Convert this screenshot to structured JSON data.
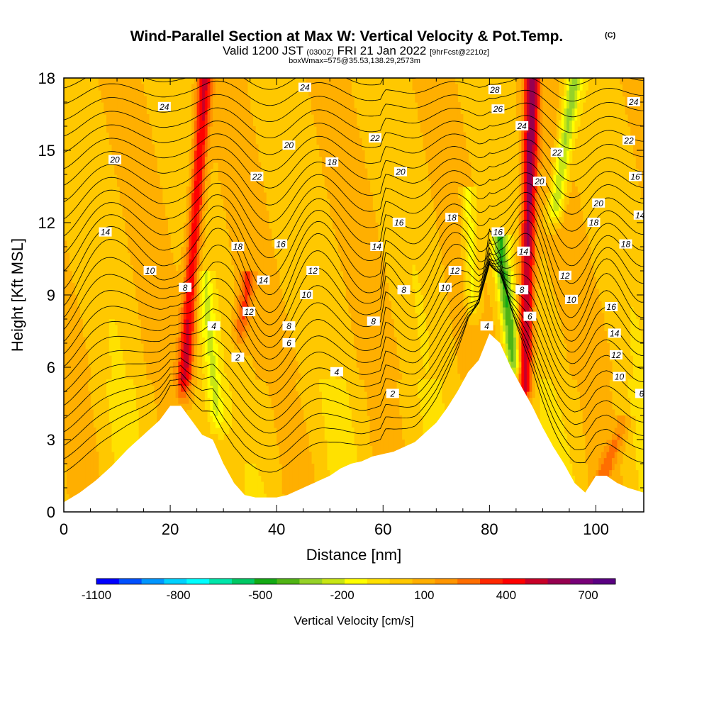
{
  "chart_data": {
    "type": "heatmap",
    "title": "Wind-Parallel Section at Max W: Vertical Velocity & Pot.Temp.",
    "title_mark": "(C)",
    "subtitle_main": "Valid 1200 JST",
    "subtitle_utc": "(0300Z)",
    "subtitle_date": "FRI 21 Jan 2022",
    "subtitle_fcst": "[9hrFcst@2210z]",
    "subtitle_box": "boxWmax=575@35.53,138.29,2573m",
    "xlabel": "Distance [nm]",
    "ylabel": "Height [Kft MSL]",
    "xlim": [
      0,
      109
    ],
    "ylim": [
      0,
      18
    ],
    "x_ticks": [
      0,
      20,
      40,
      60,
      80,
      100
    ],
    "y_ticks": [
      0,
      3,
      6,
      9,
      12,
      15,
      18
    ],
    "colorbar": {
      "title": "Vertical Velocity [cm/s]",
      "tick_labels": [
        "-1100",
        "-800",
        "-500",
        "-200",
        "100",
        "400",
        "700"
      ],
      "tick_values": [
        -1100,
        -800,
        -500,
        -200,
        100,
        400,
        700
      ],
      "range": [
        -1100,
        800
      ],
      "colors": [
        "#0000ff",
        "#0050ff",
        "#0096ff",
        "#00d2ff",
        "#00ffff",
        "#00e6aa",
        "#00c864",
        "#14aa14",
        "#50b414",
        "#96d228",
        "#c8e614",
        "#ffff00",
        "#ffe100",
        "#ffc800",
        "#ffaf00",
        "#ff9600",
        "#ff6e00",
        "#ff2800",
        "#ff0000",
        "#c80028",
        "#960050",
        "#780078",
        "#5a0082"
      ]
    },
    "terrain": {
      "description": "terrain profile (height in Kft vs distance in nm)",
      "x": [
        0,
        3,
        6,
        9,
        12,
        15,
        18,
        20,
        22,
        24,
        26,
        28,
        30,
        32,
        34,
        36,
        38,
        40,
        42,
        44,
        46,
        48,
        50,
        52,
        54,
        56,
        58,
        60,
        62,
        64,
        66,
        68,
        70,
        72,
        74,
        76,
        78,
        80,
        82,
        84,
        86,
        88,
        90,
        92,
        94,
        96,
        98,
        100,
        102,
        104,
        106,
        109
      ],
      "y": [
        0.4,
        0.8,
        1.3,
        1.9,
        2.6,
        3.2,
        3.8,
        4.4,
        4.4,
        3.8,
        3.2,
        3.0,
        2.0,
        1.2,
        0.7,
        0.6,
        0.6,
        0.6,
        0.7,
        0.9,
        1.1,
        1.3,
        1.5,
        1.8,
        2.0,
        2.1,
        2.3,
        2.4,
        2.5,
        2.7,
        2.9,
        3.3,
        3.7,
        4.3,
        5.0,
        5.8,
        6.3,
        7.4,
        7.0,
        6.0,
        5.2,
        4.4,
        3.5,
        2.7,
        2.0,
        1.2,
        0.8,
        1.5,
        1.5,
        1.2,
        1.0,
        0.8
      ]
    },
    "updrafts": [
      {
        "x_base": 22.5,
        "x_top": 26.5,
        "y_base": 4.8,
        "y_top": 18,
        "peak": 450
      },
      {
        "x_base": 33.0,
        "x_top": 34.5,
        "y_base": 7.0,
        "y_top": 9.5,
        "peak": 250
      },
      {
        "x_base": 86.5,
        "x_top": 88.0,
        "y_base": 4.5,
        "y_top": 18,
        "peak": 550
      },
      {
        "x_base": 100.0,
        "x_top": 105.0,
        "y_base": 0.8,
        "y_top": 3.5,
        "peak": 180
      }
    ],
    "downdrafts": [
      {
        "x_base": 29.0,
        "x_top": 26.5,
        "y_base": 3.5,
        "y_top": 9.5,
        "peak": -200
      },
      {
        "x_base": 85.0,
        "x_top": 82.0,
        "y_base": 5.5,
        "y_top": 11.0,
        "peak": -450
      },
      {
        "x_base": 92.0,
        "x_top": 96.0,
        "y_base": 12.0,
        "y_top": 18.0,
        "peak": -350
      },
      {
        "x_base": 77.0,
        "x_top": 76.0,
        "y_base": 8.0,
        "y_top": 13.0,
        "peak": -220
      }
    ],
    "contour_levels_C": [
      2,
      4,
      6,
      8,
      10,
      12,
      14,
      16,
      18,
      20,
      22,
      24,
      26,
      28
    ],
    "contour_labels": [
      {
        "text": "24",
        "x": 6.3,
        "y": 16.8
      },
      {
        "text": "20",
        "x": 3.2,
        "y": 14.6
      },
      {
        "text": "14",
        "x": 2.6,
        "y": 11.6
      },
      {
        "text": "10",
        "x": 5.4,
        "y": 10.0
      },
      {
        "text": "8",
        "x": 7.6,
        "y": 9.3
      },
      {
        "text": "4",
        "x": 9.4,
        "y": 7.7
      },
      {
        "text": "2",
        "x": 10.9,
        "y": 6.4
      },
      {
        "text": "18",
        "x": 10.9,
        "y": 11.0
      },
      {
        "text": "12",
        "x": 11.6,
        "y": 8.3
      },
      {
        "text": "22",
        "x": 12.1,
        "y": 13.9
      },
      {
        "text": "14",
        "x": 12.5,
        "y": 9.6
      },
      {
        "text": "16",
        "x": 13.6,
        "y": 11.1
      },
      {
        "text": "24",
        "x": 15.1,
        "y": 17.6
      },
      {
        "text": "20",
        "x": 14.1,
        "y": 15.2
      },
      {
        "text": "8",
        "x": 14.1,
        "y": 7.7
      },
      {
        "text": "6",
        "x": 14.1,
        "y": 7.0
      },
      {
        "text": "18",
        "x": 16.8,
        "y": 14.5
      },
      {
        "text": "12",
        "x": 15.6,
        "y": 10.0
      },
      {
        "text": "10",
        "x": 15.2,
        "y": 9.0
      },
      {
        "text": "4",
        "x": 17.1,
        "y": 5.8
      },
      {
        "text": "22",
        "x": 19.5,
        "y": 15.5
      },
      {
        "text": "20",
        "x": 21.1,
        "y": 14.1
      },
      {
        "text": "16",
        "x": 21.0,
        "y": 12.0
      },
      {
        "text": "14",
        "x": 19.6,
        "y": 11.0
      },
      {
        "text": "8",
        "x": 21.3,
        "y": 9.2
      },
      {
        "text": "8",
        "x": 19.4,
        "y": 7.9
      },
      {
        "text": "2",
        "x": 20.6,
        "y": 4.9
      },
      {
        "text": "18",
        "x": 24.3,
        "y": 12.2
      },
      {
        "text": "12",
        "x": 24.5,
        "y": 10.0
      },
      {
        "text": "10",
        "x": 23.9,
        "y": 9.3
      },
      {
        "text": "4",
        "x": 26.5,
        "y": 7.7
      },
      {
        "text": "28",
        "x": 27.0,
        "y": 17.5
      },
      {
        "text": "26",
        "x": 27.2,
        "y": 16.7
      },
      {
        "text": "24",
        "x": 28.7,
        "y": 16.0
      },
      {
        "text": "16",
        "x": 27.2,
        "y": 11.6
      },
      {
        "text": "22",
        "x": 30.9,
        "y": 14.9
      },
      {
        "text": "20",
        "x": 29.8,
        "y": 13.7
      },
      {
        "text": "14",
        "x": 28.8,
        "y": 10.8
      },
      {
        "text": "8",
        "x": 28.7,
        "y": 9.2
      },
      {
        "text": "6",
        "x": 29.2,
        "y": 8.1
      },
      {
        "text": "12",
        "x": 31.4,
        "y": 9.8
      },
      {
        "text": "10",
        "x": 31.8,
        "y": 8.8
      },
      {
        "text": "20",
        "x": 33.5,
        "y": 12.8
      },
      {
        "text": "18",
        "x": 33.2,
        "y": 12.0
      },
      {
        "text": "16",
        "x": 34.3,
        "y": 8.5
      },
      {
        "text": "14",
        "x": 34.5,
        "y": 7.4
      },
      {
        "text": "12",
        "x": 34.6,
        "y": 6.5
      },
      {
        "text": "10",
        "x": 34.8,
        "y": 5.6
      },
      {
        "text": "24",
        "x": 35.7,
        "y": 17.0
      },
      {
        "text": "22",
        "x": 35.4,
        "y": 15.4
      },
      {
        "text": "16",
        "x": 35.8,
        "y": 13.9
      },
      {
        "text": "14",
        "x": 36.1,
        "y": 12.3
      },
      {
        "text": "18",
        "x": 35.2,
        "y": 11.1
      },
      {
        "text": "8",
        "x": 36.9,
        "y": 5.8
      },
      {
        "text": "6",
        "x": 36.2,
        "y": 4.9
      }
    ],
    "grid": false,
    "legend": "bottom"
  }
}
